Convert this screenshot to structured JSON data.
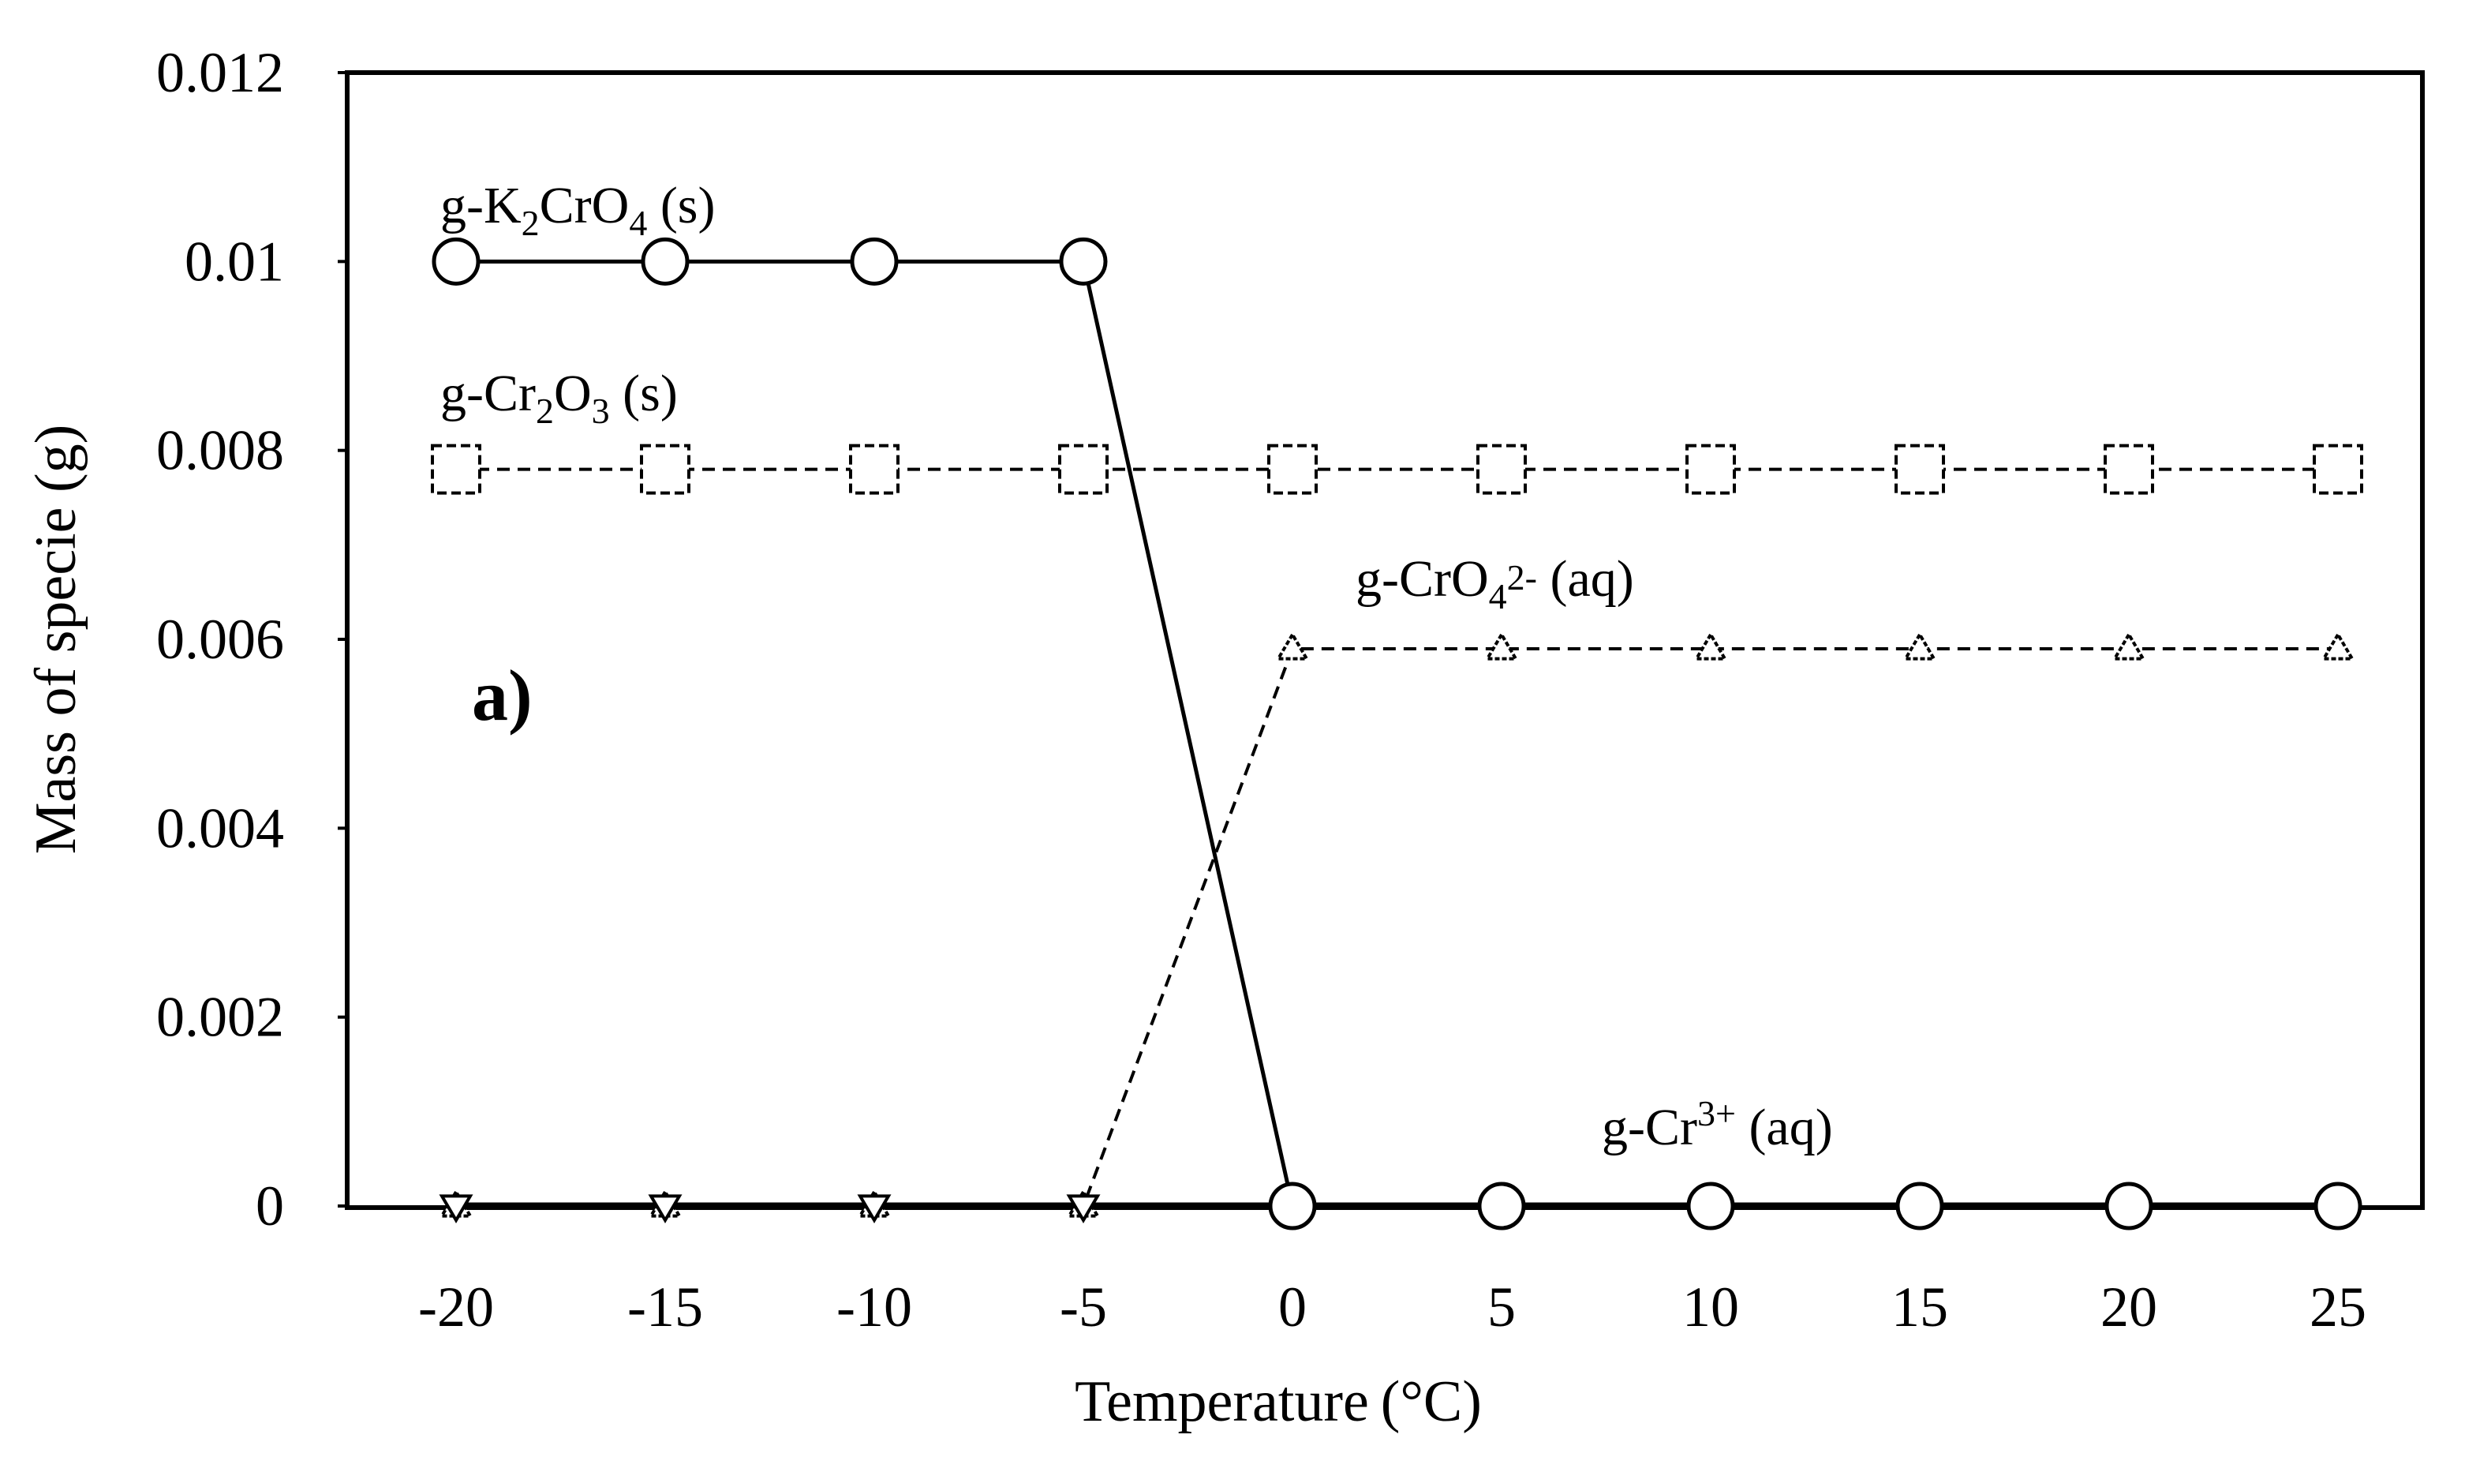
{
  "chart_data": {
    "type": "line",
    "panel_label": "a)",
    "xlabel": "Temperature (°C)",
    "ylabel": "Mass of specie (g)",
    "x": [
      -20,
      -15,
      -10,
      -5,
      0,
      5,
      10,
      15,
      20,
      25
    ],
    "x_ticks": [
      "-20",
      "-15",
      "-10",
      "-5",
      "0",
      "5",
      "10",
      "15",
      "20",
      "25"
    ],
    "y_ticks": [
      "0",
      "0.002",
      "0.004",
      "0.006",
      "0.008",
      "0.01",
      "0.012"
    ],
    "ylim": [
      0,
      0.012
    ],
    "grid": false,
    "legend": "none",
    "series": [
      {
        "label_prefix": "g-",
        "label_parts": [
          [
            "K",
            ""
          ],
          [
            "2",
            "sub"
          ],
          [
            "CrO",
            ""
          ],
          [
            "4",
            "sub"
          ],
          [
            " (s)",
            ""
          ]
        ],
        "values": [
          0.01,
          0.01,
          0.01,
          0.01,
          0,
          0,
          0,
          0,
          0,
          0
        ],
        "marker": "circle",
        "line": "solid"
      },
      {
        "label_prefix": "g-",
        "label_parts": [
          [
            "Cr",
            ""
          ],
          [
            "2",
            "sub"
          ],
          [
            "O",
            ""
          ],
          [
            "3",
            "sub"
          ],
          [
            " (s)",
            ""
          ]
        ],
        "values": [
          0.0078,
          0.0078,
          0.0078,
          0.0078,
          0.0078,
          0.0078,
          0.0078,
          0.0078,
          0.0078,
          0.0078
        ],
        "marker": "square",
        "line": "dashed"
      },
      {
        "label_prefix": "g-",
        "label_parts": [
          [
            "CrO",
            ""
          ],
          [
            "4",
            "sub"
          ],
          [
            "2-",
            "sup"
          ],
          [
            " (aq)",
            ""
          ]
        ],
        "values": [
          0,
          0,
          0,
          0,
          0.0059,
          0.0059,
          0.0059,
          0.0059,
          0.0059,
          0.0059
        ],
        "marker": "triangle-up",
        "line": "dashed"
      },
      {
        "label_prefix": "g-",
        "label_parts": [
          [
            "Cr",
            ""
          ],
          [
            "3+",
            "sup"
          ],
          [
            " (aq)",
            ""
          ]
        ],
        "values": [
          0,
          0,
          0,
          0,
          0,
          0,
          0,
          0,
          0,
          0
        ],
        "marker": "triangle-down",
        "line": "solid-thick"
      }
    ]
  }
}
